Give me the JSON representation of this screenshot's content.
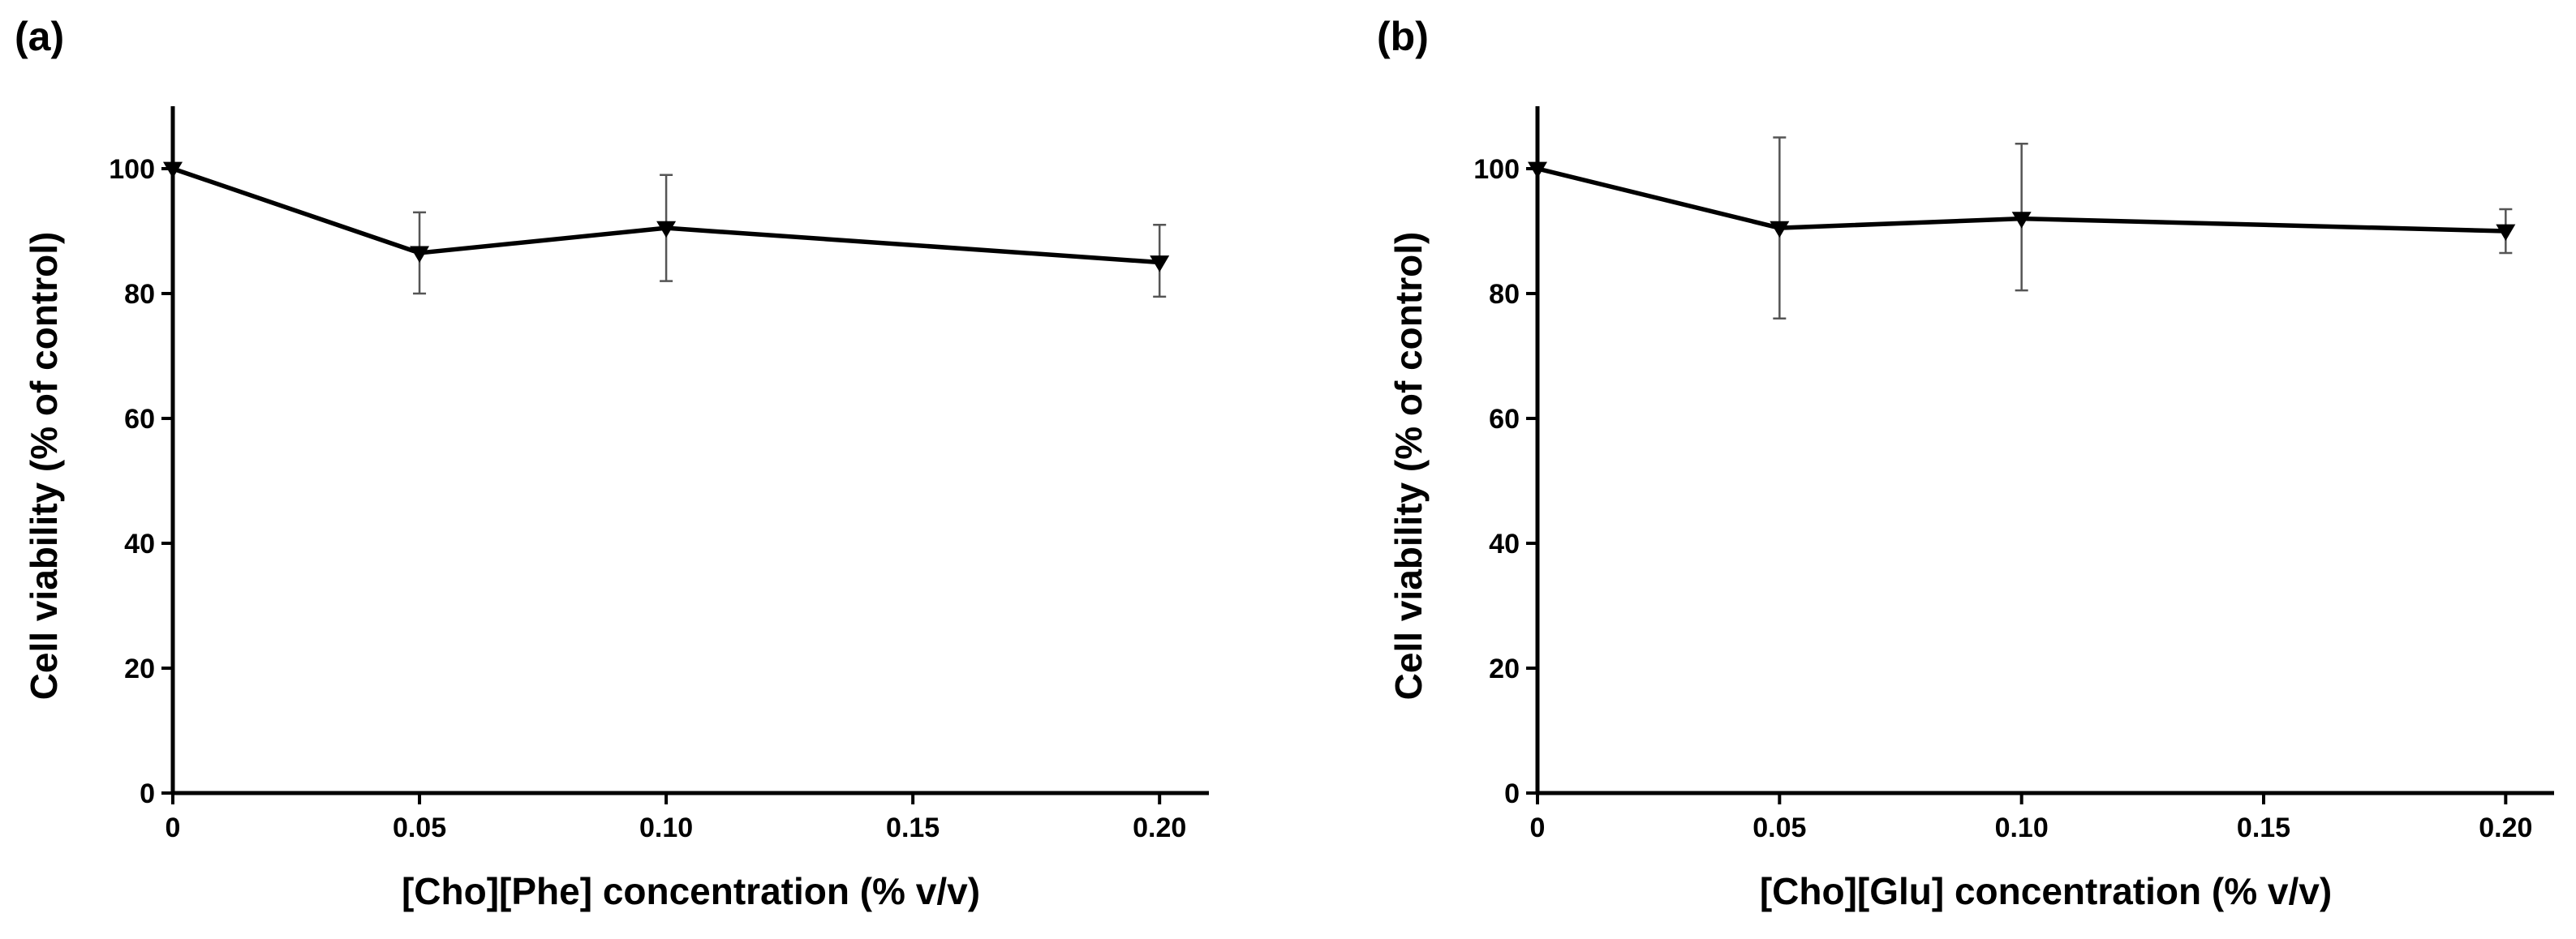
{
  "chart_data": [
    {
      "type": "line",
      "panel_label": "(a)",
      "xlabel": "[Cho][Phe] concentration (% v/v)",
      "ylabel": "Cell viability (% of control)",
      "x": [
        0,
        0.05,
        0.1,
        0.2
      ],
      "xticks": [
        0,
        0.05,
        0.1,
        0.15,
        0.2
      ],
      "xtick_labels": [
        "0",
        "0.05",
        "0.10",
        "0.15",
        "0.20"
      ],
      "xlim": [
        0,
        0.21
      ],
      "yticks": [
        0,
        20,
        40,
        60,
        80,
        100
      ],
      "ytick_labels": [
        "0",
        "20",
        "40",
        "60",
        "80",
        "100"
      ],
      "ylim": [
        0,
        110
      ],
      "series": [
        {
          "name": "[Cho][Phe]",
          "marker": "triangle-down",
          "values": [
            100,
            86.5,
            90.5,
            85
          ],
          "err_low": [
            100,
            80,
            82,
            79.5
          ],
          "err_high": [
            100,
            93,
            99,
            91
          ]
        }
      ]
    },
    {
      "type": "line",
      "panel_label": "(b)",
      "xlabel": "[Cho][Glu] concentration (% v/v)",
      "ylabel": "Cell viability (% of control)",
      "x": [
        0,
        0.05,
        0.1,
        0.2
      ],
      "xticks": [
        0,
        0.05,
        0.1,
        0.15,
        0.2
      ],
      "xtick_labels": [
        "0",
        "0.05",
        "0.10",
        "0.15",
        "0.20"
      ],
      "xlim": [
        0,
        0.21
      ],
      "yticks": [
        0,
        20,
        40,
        60,
        80,
        100
      ],
      "ytick_labels": [
        "0",
        "20",
        "40",
        "60",
        "80",
        "100"
      ],
      "ylim": [
        0,
        110
      ],
      "series": [
        {
          "name": "[Cho][Glu]",
          "marker": "triangle-down",
          "values": [
            100,
            90.5,
            92,
            90
          ],
          "err_low": [
            100,
            76,
            80.5,
            86.5
          ],
          "err_high": [
            100,
            105,
            104,
            93.5
          ]
        }
      ]
    }
  ]
}
